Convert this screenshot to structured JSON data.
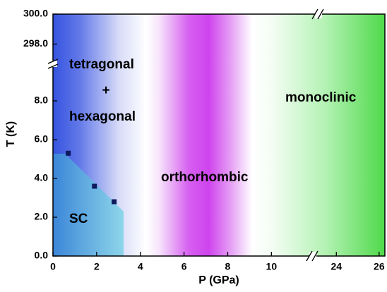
{
  "chart_data": {
    "type": "scatter",
    "x_label": "P (GPa)",
    "y_label": "T (K)",
    "x_segments": [
      {
        "xlim": [
          0,
          11.8
        ],
        "xticks": [
          0,
          2,
          4,
          6,
          8,
          10
        ]
      },
      {
        "xlim": [
          23,
          26.27
        ],
        "xticks": [
          24,
          26
        ]
      }
    ],
    "y_segments": [
      {
        "ylim": [
          0,
          9.82
        ],
        "yticks": [
          {
            "value": 0,
            "label": "0.0"
          },
          {
            "value": 2,
            "label": "2.0"
          },
          {
            "value": 4,
            "label": "4.0"
          },
          {
            "value": 6,
            "label": "6.0"
          },
          {
            "value": 8,
            "label": "8.0"
          }
        ]
      },
      {
        "ylim": [
          296.8,
          300
        ],
        "yticks": [
          {
            "value": 298,
            "label": "298.0"
          },
          {
            "value": 300,
            "label": "300.0"
          }
        ]
      }
    ],
    "series": [
      {
        "color": "#0d1a5c",
        "x": [
          0.7,
          1.9,
          2.8
        ],
        "values": [
          5.3,
          3.6,
          2.8
        ]
      }
    ],
    "annotations": [
      "tetragonal",
      "+",
      "hexagonal",
      "monoclinic",
      "orthorhombic",
      "SC"
    ]
  }
}
